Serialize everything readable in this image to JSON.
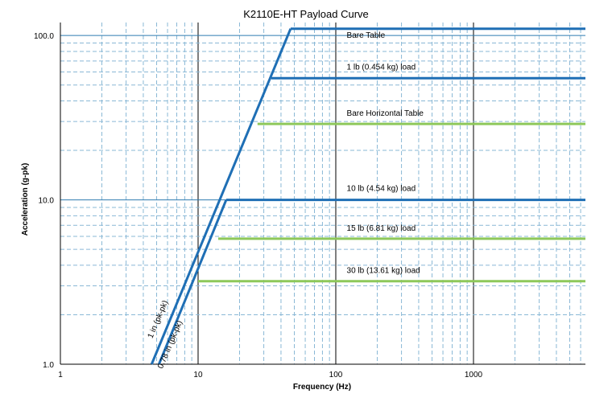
{
  "chart_data": {
    "type": "line",
    "title": "K2110E-HT Payload Curve",
    "xlabel": "Frequency (Hz)",
    "ylabel": "Acceleration (g-pk)",
    "xscale": "log",
    "yscale": "log",
    "xlim": [
      1,
      6500
    ],
    "ylim": [
      1,
      120
    ],
    "xticks": [
      {
        "value": 1,
        "label": "1"
      },
      {
        "value": 10,
        "label": "10"
      },
      {
        "value": 100,
        "label": "100"
      },
      {
        "value": 1000,
        "label": "1000"
      }
    ],
    "yticks": [
      {
        "value": 1,
        "label": "1.0"
      },
      {
        "value": 10,
        "label": "10.0"
      },
      {
        "value": 100,
        "label": "100.0"
      }
    ],
    "grid": true,
    "colors": {
      "blue": "#1f6fb5",
      "green": "#8ec85a",
      "major_grid": "#000000",
      "minor_grid": "#8ab8d6",
      "decade_grid": "#2e7bb0"
    },
    "series": [
      {
        "label": "Bare Table",
        "color": "blue",
        "x": [
          47,
          6500
        ],
        "y": [
          110,
          110
        ]
      },
      {
        "label": "1 lb (0.454  kg) load",
        "color": "blue",
        "x": [
          34,
          6500
        ],
        "y": [
          55,
          55
        ]
      },
      {
        "label": "Bare Horizontal Table",
        "color": "green",
        "x": [
          27,
          6500
        ],
        "y": [
          29,
          29
        ]
      },
      {
        "label": "10 lb (4.54  kg) load",
        "color": "blue",
        "x": [
          16,
          6500
        ],
        "y": [
          10,
          10
        ]
      },
      {
        "label": "15 lb (6.81  kg) load",
        "color": "green",
        "x": [
          14,
          6500
        ],
        "y": [
          5.8,
          5.8
        ]
      },
      {
        "label": "30 lb (13.61  kg) load",
        "color": "green",
        "x": [
          10,
          6500
        ],
        "y": [
          3.2,
          3.2
        ]
      },
      {
        "label": "1 in (pk-pk)",
        "color": "blue",
        "x": [
          4.6,
          47
        ],
        "y": [
          1,
          110
        ]
      },
      {
        "label": "0.78 in (pk-pk)",
        "color": "blue",
        "x": [
          5.2,
          16
        ],
        "y": [
          1,
          10
        ]
      }
    ],
    "annotations": [
      {
        "text": "Bare Table",
        "x": 120,
        "y": 97
      },
      {
        "text": "1 lb (0.454  kg) load",
        "x": 120,
        "y": 62
      },
      {
        "text": "Bare Horizontal Table",
        "x": 120,
        "y": 32.5
      },
      {
        "text": "10 lb (4.54  kg) load",
        "x": 120,
        "y": 11.3
      },
      {
        "text": "15 lb (6.81  kg) load",
        "x": 120,
        "y": 6.5
      },
      {
        "text": "30 lb (13.61  kg) load",
        "x": 120,
        "y": 3.6
      },
      {
        "text": "1 in (pk-pk)",
        "x": 5.3,
        "y": 1.85
      },
      {
        "text": "0.78 in (pk-pk)",
        "x": 6.5,
        "y": 1.3
      }
    ]
  }
}
